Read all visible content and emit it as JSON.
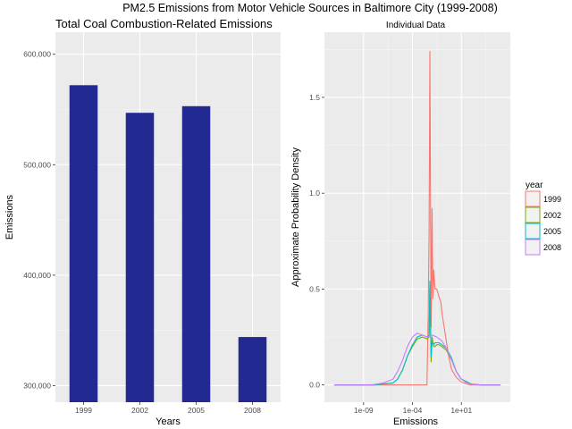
{
  "figure": {
    "title": "PM2.5 Emissions from Motor Vehicle Sources in Baltimore City (1999-2008)"
  },
  "chart_data": [
    {
      "type": "bar",
      "title": "Total Coal Combustion-Related Emissions",
      "xlabel": "Years",
      "ylabel": "Emissions",
      "categories": [
        "1999",
        "2002",
        "2005",
        "2008"
      ],
      "values": [
        572000,
        547000,
        553000,
        344000
      ],
      "ylim": [
        285000,
        620000
      ],
      "yticks": [
        300000,
        400000,
        500000,
        600000
      ],
      "ytick_labels": [
        "300,000",
        "400,000",
        "500,000",
        "600,000"
      ],
      "bar_color": "#222a91",
      "grid": true
    },
    {
      "type": "line",
      "title": "Individual Data",
      "xlabel": "Emissions",
      "ylabel": "Approximate Probability Density",
      "x_scale": "log10",
      "xlim": [
        1e-13,
        1000000.0
      ],
      "ylim": [
        -0.09,
        1.84
      ],
      "xticks": [
        1e-09,
        0.0001,
        10.0
      ],
      "xtick_labels": [
        "1e-09",
        "1e-04",
        "1e+01"
      ],
      "yticks": [
        0,
        0.5,
        1,
        1.5
      ],
      "ytick_labels": [
        "0.0",
        "0.5",
        "1.0",
        "1.5"
      ],
      "grid": true,
      "legend": {
        "title": "year",
        "position": "right"
      },
      "series": [
        {
          "name": "1999",
          "color": "#f8766d",
          "x": [
            1e-12,
            0.001,
            0.003,
            0.004,
            0.005,
            0.006,
            0.008,
            0.01,
            0.012,
            0.015,
            0.02,
            0.025,
            0.03,
            0.04,
            0.05,
            0.06,
            0.08,
            0.1,
            0.2,
            0.5,
            1,
            3,
            10,
            30,
            100,
            1000,
            100000.0
          ],
          "y": [
            0,
            0,
            0,
            0.35,
            0.8,
            1.74,
            0.3,
            0.92,
            0.45,
            0.6,
            0.5,
            0.5,
            0.5,
            0.48,
            0.46,
            0.45,
            0.43,
            0.38,
            0.28,
            0.15,
            0.08,
            0.04,
            0.015,
            0.005,
            0,
            0,
            0
          ]
        },
        {
          "name": "2002",
          "color": "#7cae00",
          "x": [
            1e-12,
            1e-08,
            1e-06,
            3e-06,
            1e-05,
            3e-05,
            0.0001,
            0.0003,
            0.001,
            0.003,
            0.005,
            0.006,
            0.008,
            0.01,
            0.015,
            0.02,
            0.03,
            0.05,
            0.1,
            0.3,
            1,
            3,
            10,
            100,
            1000,
            100000.0
          ],
          "y": [
            0,
            0,
            0.01,
            0.03,
            0.08,
            0.15,
            0.2,
            0.24,
            0.25,
            0.24,
            0.25,
            0.52,
            0.12,
            0.25,
            0.2,
            0.2,
            0.21,
            0.21,
            0.2,
            0.18,
            0.13,
            0.07,
            0.03,
            0.005,
            0,
            0
          ]
        },
        {
          "name": "2005",
          "color": "#00bfc4",
          "x": [
            1e-12,
            1e-08,
            1e-06,
            3e-06,
            1e-05,
            3e-05,
            0.0001,
            0.0003,
            0.001,
            0.003,
            0.005,
            0.006,
            0.008,
            0.01,
            0.015,
            0.02,
            0.03,
            0.05,
            0.1,
            0.3,
            1,
            3,
            10,
            100,
            1000,
            100000.0
          ],
          "y": [
            0,
            0,
            0.01,
            0.03,
            0.08,
            0.15,
            0.21,
            0.25,
            0.26,
            0.25,
            0.26,
            0.54,
            0.15,
            0.22,
            0.21,
            0.22,
            0.22,
            0.22,
            0.21,
            0.19,
            0.14,
            0.07,
            0.03,
            0.005,
            0,
            0
          ]
        },
        {
          "name": "2008",
          "color": "#c77cff",
          "x": [
            1e-12,
            1e-09,
            1e-08,
            1e-07,
            1e-06,
            3e-06,
            1e-05,
            3e-05,
            0.0001,
            0.0003,
            0.001,
            0.003,
            0.01,
            0.03,
            0.1,
            0.3,
            1,
            3,
            10,
            30,
            100,
            1000,
            100000.0
          ],
          "y": [
            0,
            0,
            0.002,
            0.01,
            0.03,
            0.07,
            0.13,
            0.2,
            0.25,
            0.27,
            0.26,
            0.25,
            0.26,
            0.25,
            0.23,
            0.19,
            0.13,
            0.07,
            0.03,
            0.012,
            0.004,
            0,
            0
          ]
        }
      ]
    }
  ]
}
